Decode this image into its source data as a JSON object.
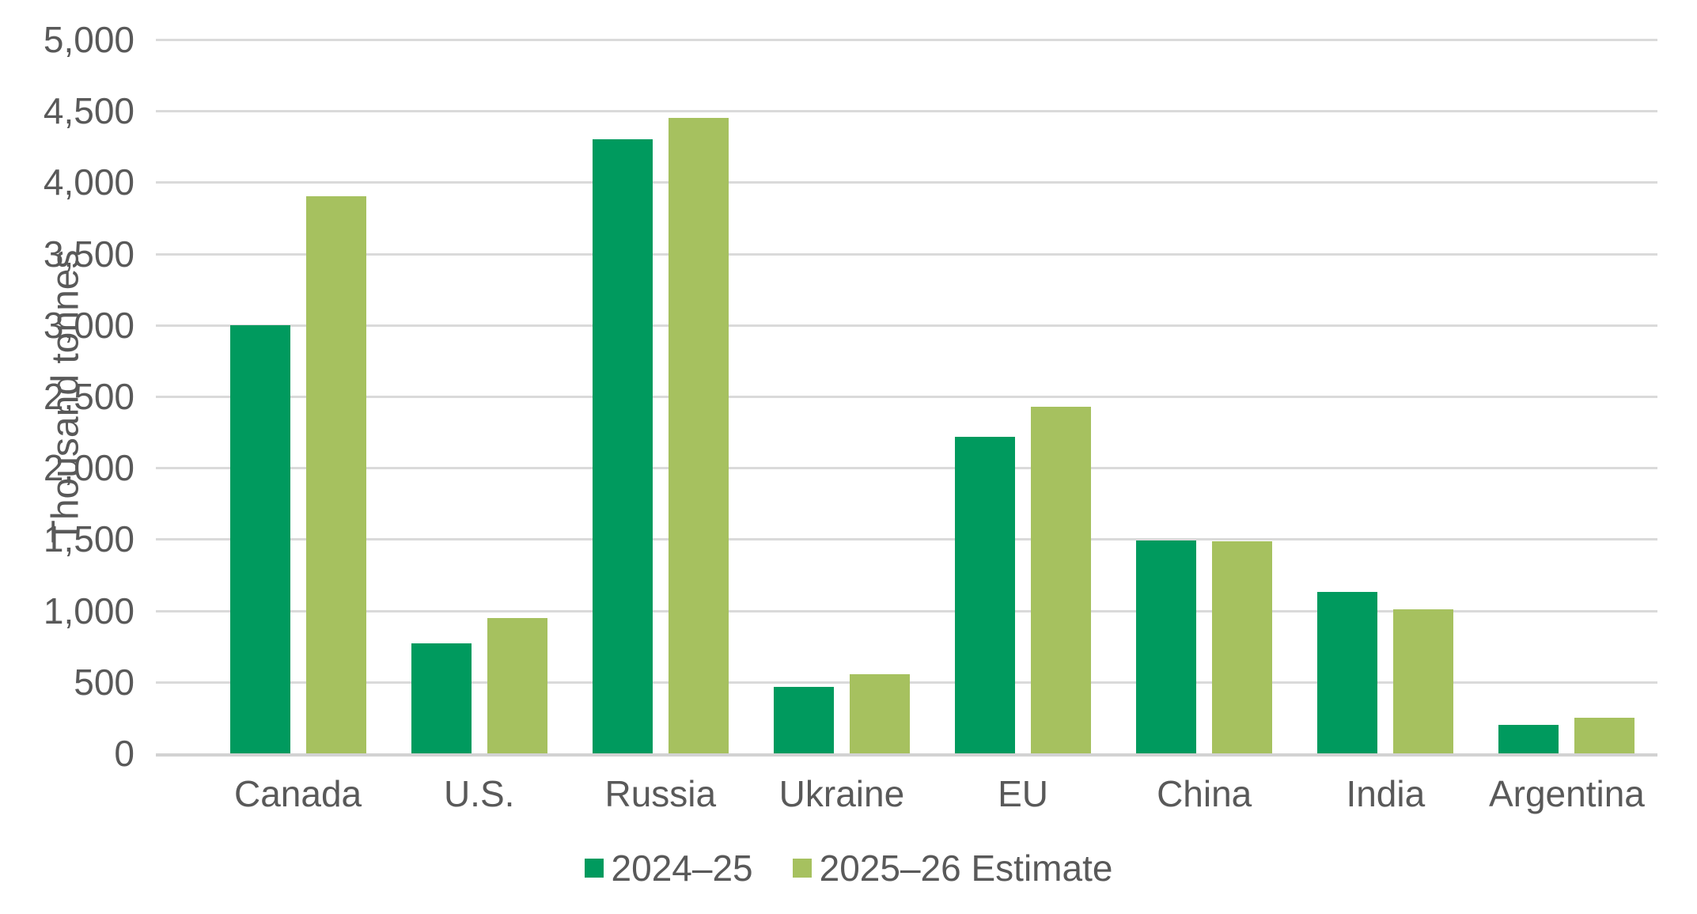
{
  "chart_data": {
    "type": "bar",
    "title": "",
    "ylabel": "Thousand tonnes",
    "xlabel": "",
    "categories": [
      "Canada",
      "U.S.",
      "Russia",
      "Ukraine",
      "EU",
      "China",
      "India",
      "Argentina"
    ],
    "series": [
      {
        "name": "2024–25",
        "color": "#009A5E",
        "values": [
          3000,
          770,
          4300,
          465,
          2220,
          1490,
          1130,
          200
        ]
      },
      {
        "name": "2025–26 Estimate",
        "color": "#A6C15F",
        "values": [
          3900,
          950,
          4450,
          555,
          2430,
          1485,
          1010,
          250
        ]
      }
    ],
    "ylim": [
      0,
      5000
    ],
    "ytick_step": 500,
    "ytick_labels": [
      "0",
      "500",
      "1,000",
      "1,500",
      "2,000",
      "2,500",
      "3,000",
      "3,500",
      "4,000",
      "4,500",
      "5,000"
    ],
    "grid": true,
    "legend_position": "bottom",
    "colors": {
      "axis_text": "#595959",
      "gridline": "#dadada",
      "baseline": "#d2d2d2",
      "background": "#ffffff"
    }
  }
}
